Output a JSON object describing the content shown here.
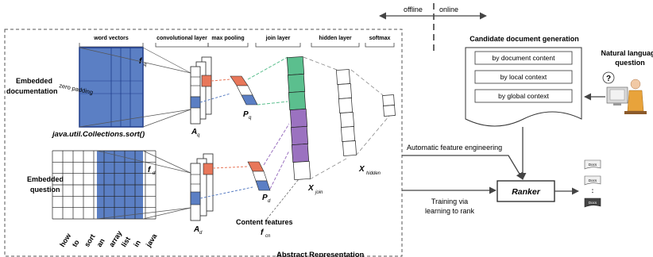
{
  "phase": {
    "offline": "offline",
    "online": "online"
  },
  "sections": {
    "word_vectors": "word vectors",
    "convolutional_layer": "convolutional layer",
    "max_pooling": "max pooling",
    "join_layer": "join layer",
    "hidden_layer": "hidden layer",
    "softmax": "softmax",
    "abstract_representation": "Abstract Representation"
  },
  "doc": {
    "title_line1": "Embedded",
    "title_line2": "documentation",
    "zero_padding": "zero padding",
    "code": "java.util.Collections.sort()"
  },
  "question": {
    "title_line1": "Embedded",
    "title_line2": "question",
    "words": [
      "how",
      "to",
      "sort",
      "an",
      "array",
      "list",
      "in",
      "java"
    ]
  },
  "symbols": {
    "f": "f",
    "q": "q",
    "d": "d",
    "A": "A",
    "P": "P",
    "X": "X",
    "join": "join",
    "hidden": "hidden",
    "cn": "cn"
  },
  "content_features": "Content features",
  "candidate": {
    "title": "Candidate document generation",
    "items": [
      "by document content",
      "by local context",
      "by global context"
    ]
  },
  "natural_question": {
    "line1": "Natural language",
    "line2": "question"
  },
  "flows": {
    "automatic": "Automatic feature engineering",
    "training_line1": "Training via",
    "training_line2": "learning to rank"
  },
  "ranker": "Ranker",
  "docs_label": "Docs",
  "ellipsis": ":",
  "colors": {
    "blue": "#5b7fc4",
    "blue_light": "#8ea8de",
    "orange": "#e8775a",
    "green": "#5bbf8e",
    "purple": "#9b72c0",
    "navy": "#1f3b8a",
    "dark": "#3a3a3a"
  }
}
